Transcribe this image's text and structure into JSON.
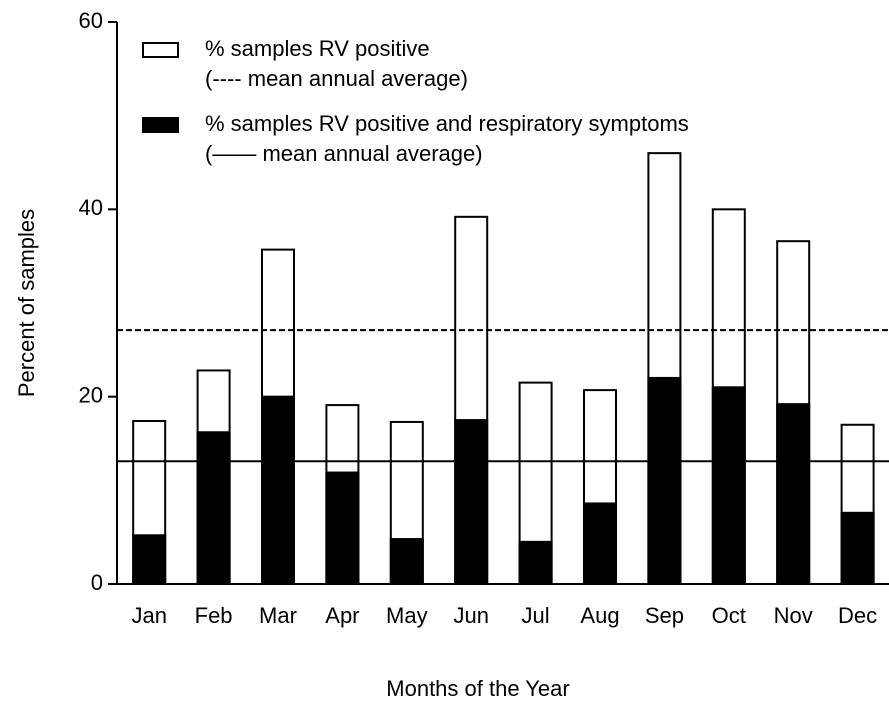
{
  "chart_data": {
    "type": "bar",
    "x_label": "Months of the Year",
    "y_label": "Percent of samples",
    "categories": [
      "Jan",
      "Feb",
      "Mar",
      "Apr",
      "May",
      "Jun",
      "Jul",
      "Aug",
      "Sep",
      "Oct",
      "Nov",
      "Dec"
    ],
    "series": [
      {
        "name": "% samples RV positive",
        "color": "#ffffff",
        "values": [
          17.4,
          22.8,
          35.7,
          19.1,
          17.3,
          39.2,
          21.5,
          20.7,
          46,
          40,
          36.6,
          17
        ]
      },
      {
        "name": "% samples RV positive and respiratory symptoms",
        "color": "#000000",
        "values": [
          5.2,
          16.2,
          20,
          11.9,
          4.8,
          17.5,
          4.5,
          8.6,
          22,
          21,
          19.2,
          7.6
        ]
      }
    ],
    "reference_lines": [
      {
        "name": "(---- mean annual average)",
        "value": 27.1,
        "style": "dashed"
      },
      {
        "name": "(—— mean annual average)",
        "value": 13.1,
        "style": "solid"
      }
    ],
    "ylim": [
      0,
      60
    ],
    "yticks": [
      0,
      20,
      40,
      60
    ]
  }
}
